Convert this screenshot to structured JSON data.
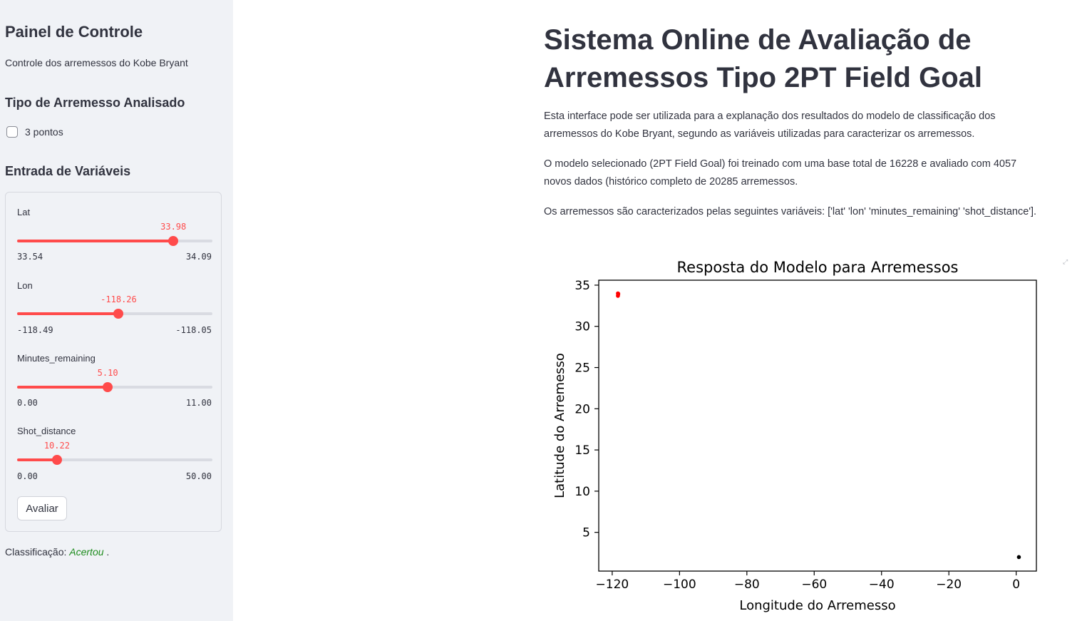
{
  "sidebar": {
    "title": "Painel de Controle",
    "subtitle": "Controle dos arremessos do Kobe Bryant",
    "shot_type_heading": "Tipo de Arremesso Analisado",
    "checkbox_label": "3 pontos",
    "checkbox_checked": false,
    "inputs_heading": "Entrada de Variáveis",
    "sliders": [
      {
        "label": "Lat",
        "value": "33.98",
        "min": "33.54",
        "max": "34.09",
        "fraction": 0.8
      },
      {
        "label": "Lon",
        "value": "-118.26",
        "min": "-118.49",
        "max": "-118.05",
        "fraction": 0.52
      },
      {
        "label": "Minutes_remaining",
        "value": "5.10",
        "min": "0.00",
        "max": "11.00",
        "fraction": 0.464
      },
      {
        "label": "Shot_distance",
        "value": "10.22",
        "min": "0.00",
        "max": "50.00",
        "fraction": 0.204
      }
    ],
    "submit_label": "Avaliar",
    "result_prefix": "Classificação:",
    "result_value": "Acertou",
    "result_suffix": "."
  },
  "main": {
    "title": "Sistema Online de Avaliação de Arremessos Tipo 2PT Field Goal",
    "paragraphs": [
      "Esta interface pode ser utilizada para a explanação dos resultados do modelo de classificação dos arremessos do Kobe Bryant, segundo as variáveis utilizadas para caracterizar os arremessos.",
      "O modelo selecionado (2PT Field Goal) foi treinado com uma base total de 16228 e avaliado com 4057 novos dados (histórico completo de 20285 arremessos.",
      "Os arremessos são caracterizados pelas seguintes variáveis: ['lat' 'lon' 'minutes_remaining' 'shot_distance']."
    ]
  },
  "colors": {
    "accent": "#ff4b4b",
    "sidebar_bg": "#f0f2f6",
    "success": "#1e8c1e"
  },
  "chart_data": {
    "type": "scatter",
    "title": "Resposta do Modelo para Arremessos",
    "xlabel": "Longitude do Arremesso",
    "ylabel": "Latitude do Arremesso",
    "xlim": [
      -124,
      6
    ],
    "ylim": [
      0.3,
      35.6
    ],
    "xticks": [
      -120,
      -100,
      -80,
      -60,
      -40,
      -20,
      0
    ],
    "xtick_labels": [
      "−120",
      "−100",
      "−80",
      "−60",
      "−40",
      "−20",
      "0"
    ],
    "yticks": [
      5,
      10,
      15,
      20,
      25,
      30,
      35
    ],
    "series": [
      {
        "color": "#ff0000",
        "points": [
          [
            -118.3,
            34.0
          ],
          [
            -118.25,
            33.85
          ],
          [
            -118.3,
            33.7
          ],
          [
            -118.2,
            33.95
          ]
        ]
      },
      {
        "color": "#000000",
        "points": [
          [
            0.8,
            2.0
          ]
        ]
      }
    ]
  }
}
